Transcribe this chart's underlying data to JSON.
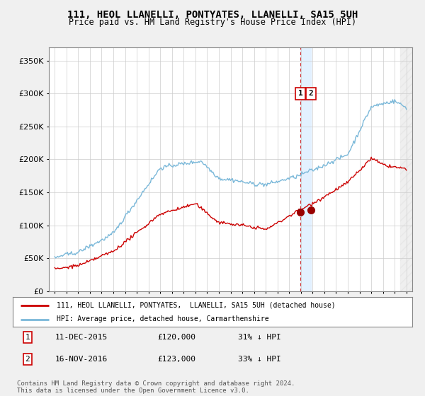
{
  "title": "111, HEOL LLANELLI, PONTYATES, LLANELLI, SA15 5UH",
  "subtitle": "Price paid vs. HM Land Registry's House Price Index (HPI)",
  "legend_line1": "111, HEOL LLANELLI, PONTYATES,  LLANELLI, SA15 5UH (detached house)",
  "legend_line2": "HPI: Average price, detached house, Carmarthenshire",
  "annotation1_label": "1",
  "annotation1_date": "11-DEC-2015",
  "annotation1_price": "£120,000",
  "annotation1_pct": "31% ↓ HPI",
  "annotation2_label": "2",
  "annotation2_date": "16-NOV-2016",
  "annotation2_price": "£123,000",
  "annotation2_pct": "33% ↓ HPI",
  "footer": "Contains HM Land Registry data © Crown copyright and database right 2024.\nThis data is licensed under the Open Government Licence v3.0.",
  "hpi_color": "#7ab8d9",
  "price_color": "#cc0000",
  "annotation_color": "#990000",
  "dashed_line_color": "#cc0000",
  "shade_color": "#ddeeff",
  "ylim": [
    0,
    370000
  ],
  "yticks": [
    0,
    50000,
    100000,
    150000,
    200000,
    250000,
    300000,
    350000
  ],
  "background_color": "#f0f0f0",
  "plot_bg_color": "#ffffff",
  "sale1_year": 2015.95,
  "sale1_price": 120000,
  "sale2_year": 2016.87,
  "sale2_price": 123000,
  "xstart": 1995,
  "xend": 2025
}
